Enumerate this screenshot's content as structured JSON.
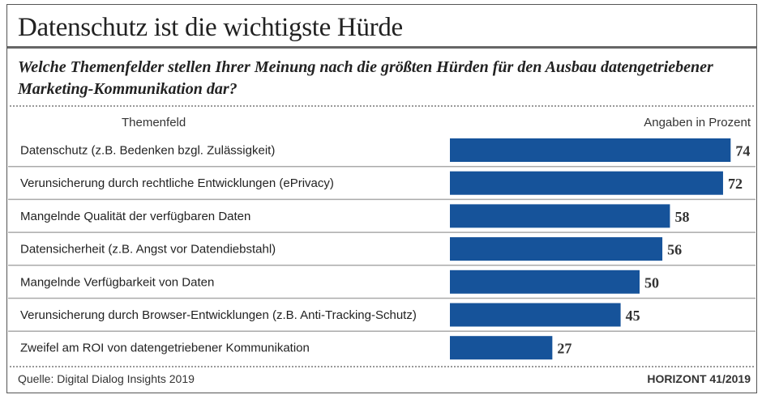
{
  "title": "Datenschutz ist die wichtigste Hürde",
  "question": "Welche Themenfelder stellen Ihrer Meinung nach die größten Hürden für den Ausbau datengetriebener Marketing-Kommunikation dar?",
  "colors": {
    "bar": "#16539a",
    "text": "#222222"
  },
  "chart_data": {
    "type": "bar",
    "orientation": "horizontal",
    "category_header": "Themenfeld",
    "value_header": "Angaben in Prozent",
    "categories": [
      "Datenschutz (z.B. Bedenken bzgl. Zulässigkeit)",
      "Verunsicherung durch rechtliche Entwicklungen (ePrivacy)",
      "Mangelnde Qualität der verfügbaren Daten",
      "Datensicherheit (z.B. Angst vor Datendiebstahl)",
      "Mangelnde Verfügbarkeit von Daten",
      "Verunsicherung durch Browser-Entwicklungen (z.B. Anti-Tracking-Schutz)",
      "Zweifel am ROI von datengetriebener Kommunikation"
    ],
    "values": [
      74,
      72,
      58,
      56,
      50,
      45,
      27
    ],
    "data_labels": [
      "74",
      "72",
      "58",
      "56",
      "50",
      "45",
      "27"
    ]
  },
  "footer": {
    "source": "Quelle: Digital Dialog Insights 2019",
    "publication": "HORIZONT 41/2019"
  }
}
